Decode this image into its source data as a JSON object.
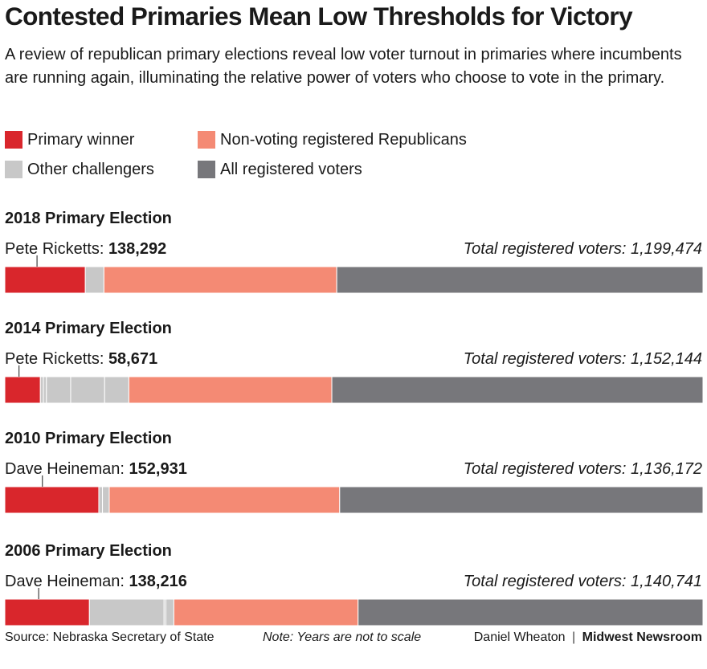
{
  "title": "Contested Primaries Mean Low Thresholds for Victory",
  "subtitle": "A review of republican primary elections reveal low voter turnout in primaries where incumbents are running again, illuminating the relative power of voters who choose to vote in the primary.",
  "legend": [
    {
      "label": "Primary winner",
      "color": "#d9262c"
    },
    {
      "label": "Non-voting registered Republicans",
      "color": "#f48a74"
    },
    {
      "label": "Other challengers",
      "color": "#c8c8c8"
    },
    {
      "label": "All registered voters",
      "color": "#77777b"
    }
  ],
  "chart_data": {
    "type": "bar",
    "orientation": "horizontal-stacked",
    "total_label_prefix": "Total registered voters: ",
    "elections": [
      {
        "title": "2018 Primary Election",
        "winner_name": "Pete Ricketts",
        "winner_votes": "138,292",
        "total_registered": "1,199,474",
        "segments": [
          {
            "category": "Primary winner",
            "value": 138292
          },
          {
            "category": "Other challengers",
            "value": 32000
          },
          {
            "category": "Non-voting registered Republicans",
            "value": 400000
          },
          {
            "category": "All registered voters",
            "value": 629182
          }
        ]
      },
      {
        "title": "2014 Primary Election",
        "winner_name": "Pete Ricketts",
        "winner_votes": "58,671",
        "total_registered": "1,152,144",
        "segments": [
          {
            "category": "Primary winner",
            "value": 58671
          },
          {
            "category": "Other challengers",
            "value": 5000
          },
          {
            "category": "Other challengers",
            "value": 5000
          },
          {
            "category": "Other challengers",
            "value": 40000
          },
          {
            "category": "Other challengers",
            "value": 56000
          },
          {
            "category": "Other challengers",
            "value": 40000
          },
          {
            "category": "Non-voting registered Republicans",
            "value": 335000
          },
          {
            "category": "All registered voters",
            "value": 612473
          }
        ]
      },
      {
        "title": "2010 Primary Election",
        "winner_name": "Dave Heineman",
        "winner_votes": "152,931",
        "total_registered": "1,136,172",
        "segments": [
          {
            "category": "Primary winner",
            "value": 152931
          },
          {
            "category": "Other challengers",
            "value": 6000
          },
          {
            "category": "Other challengers",
            "value": 11000
          },
          {
            "category": "Non-voting registered Republicans",
            "value": 375000
          },
          {
            "category": "All registered voters",
            "value": 591241
          }
        ]
      },
      {
        "title": "2006 Primary Election",
        "winner_name": "Dave Heineman",
        "winner_votes": "138,216",
        "total_registered": "1,140,741",
        "segments": [
          {
            "category": "Primary winner",
            "value": 138216
          },
          {
            "category": "Other challengers",
            "value": 122000
          },
          {
            "category": "Other challengers",
            "value": 3000
          },
          {
            "category": "Other challengers",
            "value": 13000
          },
          {
            "category": "Non-voting registered Republicans",
            "value": 301000
          },
          {
            "category": "All registered voters",
            "value": 563525
          }
        ]
      }
    ]
  },
  "footer": {
    "source": "Source: Nebraska Secretary of State",
    "note": "Note: Years are not to scale",
    "author": "Daniel Wheaton",
    "separator": "|",
    "organization": "Midwest Newsroom"
  }
}
